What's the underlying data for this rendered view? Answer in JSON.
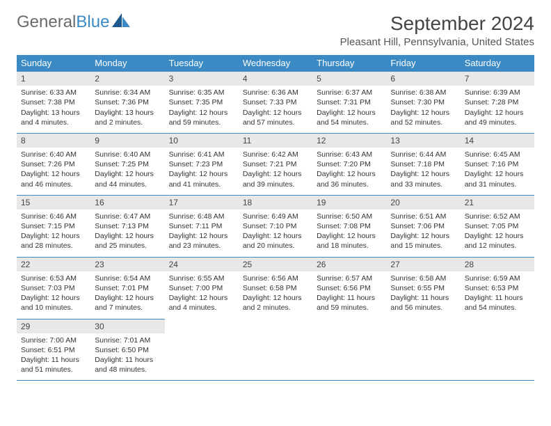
{
  "logo": {
    "text1": "General",
    "text2": "Blue",
    "icon_color": "#3b8ac4"
  },
  "title": "September 2024",
  "location": "Pleasant Hill, Pennsylvania, United States",
  "colors": {
    "header_bg": "#3b8ac4",
    "header_text": "#ffffff",
    "daynum_bg": "#e8e8e8",
    "border": "#3b8ac4",
    "text": "#333333"
  },
  "daysOfWeek": [
    "Sunday",
    "Monday",
    "Tuesday",
    "Wednesday",
    "Thursday",
    "Friday",
    "Saturday"
  ],
  "weeks": [
    [
      {
        "n": "1",
        "sr": "6:33 AM",
        "ss": "7:38 PM",
        "dl": "13 hours and 4 minutes."
      },
      {
        "n": "2",
        "sr": "6:34 AM",
        "ss": "7:36 PM",
        "dl": "13 hours and 2 minutes."
      },
      {
        "n": "3",
        "sr": "6:35 AM",
        "ss": "7:35 PM",
        "dl": "12 hours and 59 minutes."
      },
      {
        "n": "4",
        "sr": "6:36 AM",
        "ss": "7:33 PM",
        "dl": "12 hours and 57 minutes."
      },
      {
        "n": "5",
        "sr": "6:37 AM",
        "ss": "7:31 PM",
        "dl": "12 hours and 54 minutes."
      },
      {
        "n": "6",
        "sr": "6:38 AM",
        "ss": "7:30 PM",
        "dl": "12 hours and 52 minutes."
      },
      {
        "n": "7",
        "sr": "6:39 AM",
        "ss": "7:28 PM",
        "dl": "12 hours and 49 minutes."
      }
    ],
    [
      {
        "n": "8",
        "sr": "6:40 AM",
        "ss": "7:26 PM",
        "dl": "12 hours and 46 minutes."
      },
      {
        "n": "9",
        "sr": "6:40 AM",
        "ss": "7:25 PM",
        "dl": "12 hours and 44 minutes."
      },
      {
        "n": "10",
        "sr": "6:41 AM",
        "ss": "7:23 PM",
        "dl": "12 hours and 41 minutes."
      },
      {
        "n": "11",
        "sr": "6:42 AM",
        "ss": "7:21 PM",
        "dl": "12 hours and 39 minutes."
      },
      {
        "n": "12",
        "sr": "6:43 AM",
        "ss": "7:20 PM",
        "dl": "12 hours and 36 minutes."
      },
      {
        "n": "13",
        "sr": "6:44 AM",
        "ss": "7:18 PM",
        "dl": "12 hours and 33 minutes."
      },
      {
        "n": "14",
        "sr": "6:45 AM",
        "ss": "7:16 PM",
        "dl": "12 hours and 31 minutes."
      }
    ],
    [
      {
        "n": "15",
        "sr": "6:46 AM",
        "ss": "7:15 PM",
        "dl": "12 hours and 28 minutes."
      },
      {
        "n": "16",
        "sr": "6:47 AM",
        "ss": "7:13 PM",
        "dl": "12 hours and 25 minutes."
      },
      {
        "n": "17",
        "sr": "6:48 AM",
        "ss": "7:11 PM",
        "dl": "12 hours and 23 minutes."
      },
      {
        "n": "18",
        "sr": "6:49 AM",
        "ss": "7:10 PM",
        "dl": "12 hours and 20 minutes."
      },
      {
        "n": "19",
        "sr": "6:50 AM",
        "ss": "7:08 PM",
        "dl": "12 hours and 18 minutes."
      },
      {
        "n": "20",
        "sr": "6:51 AM",
        "ss": "7:06 PM",
        "dl": "12 hours and 15 minutes."
      },
      {
        "n": "21",
        "sr": "6:52 AM",
        "ss": "7:05 PM",
        "dl": "12 hours and 12 minutes."
      }
    ],
    [
      {
        "n": "22",
        "sr": "6:53 AM",
        "ss": "7:03 PM",
        "dl": "12 hours and 10 minutes."
      },
      {
        "n": "23",
        "sr": "6:54 AM",
        "ss": "7:01 PM",
        "dl": "12 hours and 7 minutes."
      },
      {
        "n": "24",
        "sr": "6:55 AM",
        "ss": "7:00 PM",
        "dl": "12 hours and 4 minutes."
      },
      {
        "n": "25",
        "sr": "6:56 AM",
        "ss": "6:58 PM",
        "dl": "12 hours and 2 minutes."
      },
      {
        "n": "26",
        "sr": "6:57 AM",
        "ss": "6:56 PM",
        "dl": "11 hours and 59 minutes."
      },
      {
        "n": "27",
        "sr": "6:58 AM",
        "ss": "6:55 PM",
        "dl": "11 hours and 56 minutes."
      },
      {
        "n": "28",
        "sr": "6:59 AM",
        "ss": "6:53 PM",
        "dl": "11 hours and 54 minutes."
      }
    ],
    [
      {
        "n": "29",
        "sr": "7:00 AM",
        "ss": "6:51 PM",
        "dl": "11 hours and 51 minutes."
      },
      {
        "n": "30",
        "sr": "7:01 AM",
        "ss": "6:50 PM",
        "dl": "11 hours and 48 minutes."
      },
      null,
      null,
      null,
      null,
      null
    ]
  ],
  "labels": {
    "sunrise": "Sunrise:",
    "sunset": "Sunset:",
    "daylight": "Daylight:"
  }
}
